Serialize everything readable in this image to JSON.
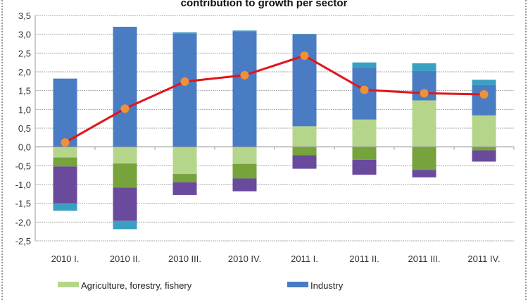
{
  "chart_data": {
    "type": "bar",
    "stacked": true,
    "title": "contribution to growth per sector",
    "categories": [
      "2010 I.",
      "2010 II.",
      "2010 III.",
      "2010 IV.",
      "2011 I.",
      "2011 II.",
      "2011 III.",
      "2011 IV."
    ],
    "ylim": [
      -2.5,
      3.5
    ],
    "yticks": [
      "3,5",
      "3,0",
      "2,5",
      "2,0",
      "1,5",
      "1,0",
      "0,5",
      "0,0",
      "-0,5",
      "-1,0",
      "-1,5",
      "-2,0",
      "-2,5"
    ],
    "grid": true,
    "legend_placement": "bottom",
    "series": [
      {
        "name": "Agriculture, forestry, fishery",
        "color": "#b5d68a",
        "values": [
          -0.28,
          -0.44,
          -0.72,
          -0.45,
          0.55,
          0.73,
          1.24,
          0.84
        ]
      },
      {
        "color": "#76a33b",
        "values": [
          -0.24,
          -0.64,
          -0.22,
          -0.39,
          -0.22,
          -0.34,
          -0.61,
          -0.09
        ]
      },
      {
        "color": "#6a4a9c",
        "values": [
          -0.98,
          -0.89,
          -0.34,
          -0.34,
          -0.36,
          -0.4,
          -0.2,
          -0.3
        ]
      },
      {
        "name": "Industry",
        "color": "#4a7cc4",
        "values": [
          1.82,
          3.2,
          3.02,
          3.07,
          2.45,
          1.39,
          0.78,
          0.81
        ]
      },
      {
        "color": "#3aa0c2",
        "values": [
          -0.2,
          -0.22,
          0.03,
          0.03,
          0.01,
          0.13,
          0.21,
          0.14
        ]
      }
    ],
    "line": {
      "type": "line",
      "color": "#e0161b",
      "marker_color": "#f0913a",
      "values": [
        0.12,
        1.02,
        1.74,
        1.91,
        2.43,
        1.52,
        1.43,
        1.4
      ]
    }
  }
}
